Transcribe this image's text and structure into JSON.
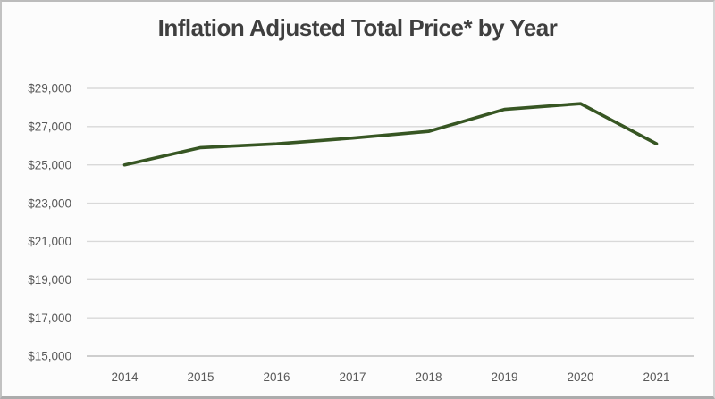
{
  "chart_data": {
    "type": "line",
    "title": "Inflation Adjusted Total Price* by Year",
    "categories": [
      "2014",
      "2015",
      "2016",
      "2017",
      "2018",
      "2019",
      "2020",
      "2021"
    ],
    "values": [
      25000,
      25900,
      26100,
      26400,
      26750,
      27900,
      28200,
      26100
    ],
    "xlabel": "",
    "ylabel": "",
    "ylim": [
      15000,
      29000
    ],
    "y_tick_step": 2000,
    "y_ticks": [
      29000,
      27000,
      25000,
      23000,
      21000,
      19000,
      17000,
      15000
    ],
    "y_tick_labels": [
      "$29,000",
      "$27,000",
      "$25,000",
      "$23,000",
      "$21,000",
      "$19,000",
      "$17,000",
      "$15,000"
    ],
    "grid": "horizontal",
    "legend": "none",
    "colors": {
      "line": "#375623",
      "gridline": "#d9d9d9",
      "axis_line": "#bfbfbf",
      "tick_label": "#595959",
      "title": "#3f3f3f",
      "background": "#fcfcfc"
    }
  }
}
